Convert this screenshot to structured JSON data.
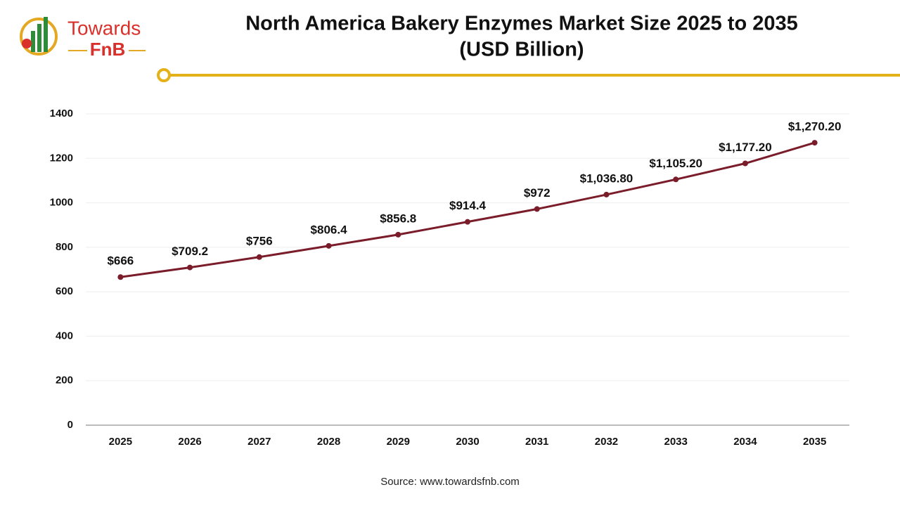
{
  "logo": {
    "line1": "Towards",
    "line2": "FnB"
  },
  "chart_data": {
    "type": "line",
    "title": "North America Bakery Enzymes Market Size 2025 to 2035",
    "subtitle": "(USD Billion)",
    "categories": [
      "2025",
      "2026",
      "2027",
      "2028",
      "2029",
      "2030",
      "2031",
      "2032",
      "2033",
      "2034",
      "2035"
    ],
    "values": [
      666,
      709.2,
      756,
      806.4,
      856.8,
      914.4,
      972,
      1036.8,
      1105.2,
      1177.2,
      1270.2
    ],
    "value_labels": [
      "$666",
      "$709.2",
      "$756",
      "$806.4",
      "$856.8",
      "$914.4",
      "$972",
      "$1,036.80",
      "$1,105.20",
      "$1,177.20",
      "$1,270.20"
    ],
    "color": "#7b1c2a",
    "ylim": [
      0,
      1400
    ],
    "yticks": [
      0,
      200,
      400,
      600,
      800,
      1000,
      1200,
      1400
    ],
    "grid": true,
    "source": "Source: www.towardsfnb.com"
  }
}
